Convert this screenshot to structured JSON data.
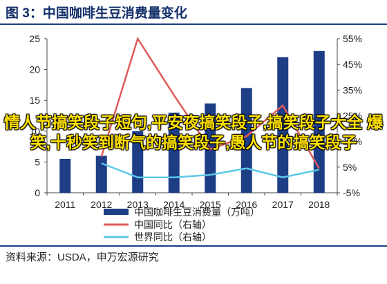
{
  "title": "图 3：中国咖啡生豆消费量变化",
  "source": "资料来源：USDA，申万宏源研究",
  "overlay_text": "情人节搞笑段子短句,平安夜搞笑段子,搞笑段子大全 爆笑,十秒笑到断气的搞笑段子,愚人节的搞笑段子",
  "colors": {
    "bars": "#1d3d85",
    "china_yoy": "#e05a5a",
    "world_yoy": "#5bc8e8",
    "title": "#14306b"
  },
  "chart_data": {
    "type": "bar",
    "categories": [
      "2011",
      "2012",
      "2013",
      "2014",
      "2015",
      "2016",
      "2017",
      "2018"
    ],
    "series": [
      {
        "name": "中国咖啡生豆消费量（万吨）",
        "type": "bar",
        "axis": "left",
        "values": [
          5.5,
          6.0,
          10.0,
          13.0,
          14.5,
          17.0,
          22.0,
          23.0
        ]
      },
      {
        "name": "中国同比（右轴）",
        "type": "line",
        "axis": "right",
        "values": [
          null,
          9.1,
          55.0,
          33.0,
          12.0,
          17.0,
          29.0,
          4.5
        ]
      },
      {
        "name": "世界同比（右轴）",
        "type": "line",
        "axis": "right",
        "values": [
          null,
          6.5,
          1.0,
          1.0,
          2.0,
          4.5,
          1.0,
          4.0
        ]
      }
    ],
    "y_left": {
      "min": 0,
      "max": 25,
      "ticks": [
        "0",
        "5",
        "10",
        "15",
        "20",
        "25"
      ]
    },
    "y_right": {
      "min": -5,
      "max": 55,
      "ticks": [
        "-5%",
        "5%",
        "15%",
        "25%",
        "35%",
        "45%",
        "55%"
      ]
    },
    "legend_position": "bottom",
    "grid": false
  }
}
